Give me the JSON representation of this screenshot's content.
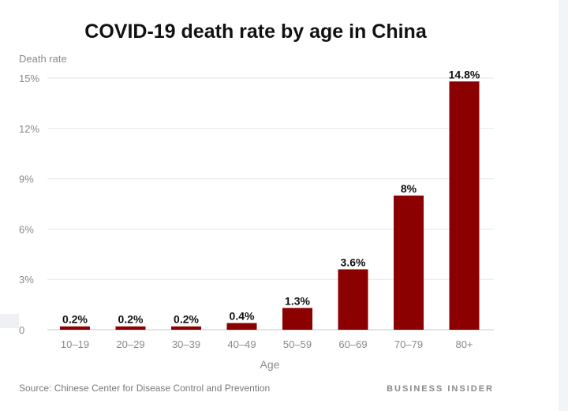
{
  "chart_data": {
    "type": "bar",
    "title": "COVID-19 death rate by age in China",
    "ylabel": "Death rate",
    "xlabel": "Age",
    "categories": [
      "10–19",
      "20–29",
      "30–39",
      "40–49",
      "50–59",
      "60–69",
      "70–79",
      "80+"
    ],
    "values": [
      0.2,
      0.2,
      0.2,
      0.4,
      1.3,
      3.6,
      8,
      14.8
    ],
    "value_labels": [
      "0.2%",
      "0.2%",
      "0.2%",
      "0.4%",
      "1.3%",
      "3.6%",
      "8%",
      "14.8%"
    ],
    "ylim": [
      0,
      15
    ],
    "yticks": [
      0,
      3,
      6,
      9,
      12,
      15
    ],
    "ytick_labels": [
      "0",
      "3%",
      "6%",
      "9%",
      "12%",
      "15%"
    ],
    "grid": true,
    "bar_color": "#8b0000"
  },
  "footer": {
    "source_label": "Source:",
    "source_text": "Chinese Center for Disease Control and Prevention",
    "brand": "BUSINESS INSIDER"
  }
}
